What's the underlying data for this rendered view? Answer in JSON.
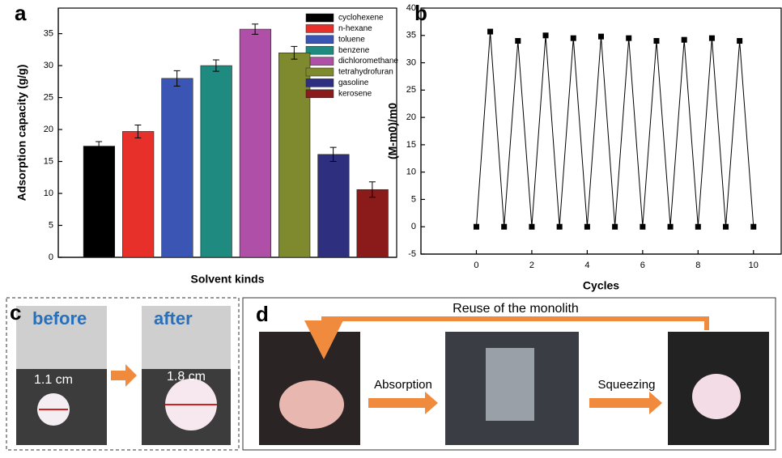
{
  "chart_data": [
    {
      "type": "bar",
      "panel": "a",
      "xlabel": "Solvent kinds",
      "ylabel": "Adsorption capacity (g/g)",
      "categories": [
        "cyclohexene",
        "n-hexane",
        "toluene",
        "benzene",
        "dichloromethane",
        "tetrahydrofuran",
        "gasoline",
        "kerosene"
      ],
      "values": [
        17.4,
        19.7,
        28.0,
        30.0,
        35.7,
        32.0,
        16.1,
        10.6
      ],
      "errors": [
        0.7,
        1.0,
        1.2,
        0.9,
        0.8,
        1.0,
        1.1,
        1.2
      ],
      "colors": [
        "#000000",
        "#e8302a",
        "#3a55b4",
        "#1f8a80",
        "#b04fa8",
        "#7f8a2e",
        "#2e2f7f",
        "#8b1a1a"
      ],
      "ylim": [
        0,
        39
      ],
      "yticks": [
        0,
        5,
        10,
        15,
        20,
        25,
        30,
        35
      ],
      "legend": "upper right"
    },
    {
      "type": "line",
      "panel": "b",
      "xlabel": "Cycles",
      "ylabel": "(M-m0)/m0",
      "x": [
        0,
        0.5,
        1,
        1.5,
        2,
        2.5,
        3,
        3.5,
        4,
        4.5,
        5,
        5.5,
        6,
        6.5,
        7,
        7.5,
        8,
        8.5,
        9,
        9.5,
        10
      ],
      "values": [
        0,
        35.7,
        0,
        34,
        0,
        35,
        0,
        34.5,
        0,
        34.8,
        0,
        34.5,
        0,
        34,
        0,
        34.2,
        0,
        34.5,
        0,
        34,
        0
      ],
      "color": "#000000",
      "xlim": [
        -2,
        11
      ],
      "xticks": [
        0,
        2,
        4,
        6,
        8,
        10
      ],
      "ylim": [
        -5,
        40
      ],
      "yticks": [
        -5,
        0,
        5,
        10,
        15,
        20,
        25,
        30,
        35,
        40
      ]
    }
  ],
  "panel_c": {
    "label": "c",
    "before": "before",
    "after": "after",
    "size_before": "1.1 cm",
    "size_after": "1.8 cm"
  },
  "panel_d": {
    "label": "d",
    "title": "Reuse of the monolith",
    "step1": "Absorption",
    "step2": "Squeezing"
  }
}
